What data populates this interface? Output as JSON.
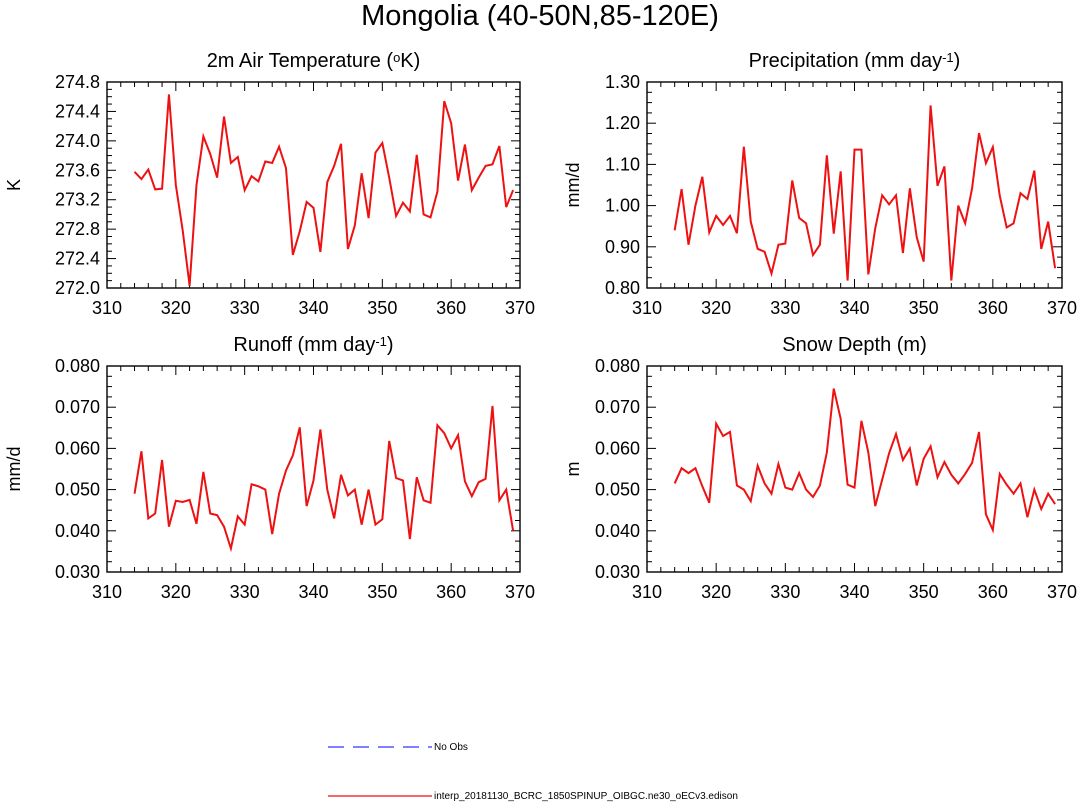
{
  "figure": {
    "title": "Mongolia (40-50N,85-120E)"
  },
  "legend": {
    "entries": [
      {
        "label": "No Obs",
        "color": "#3333ff",
        "style": "dashed"
      },
      {
        "label": "interp_20181130_BCRC_1850SPINUP_OIBGC.ne30_oECv3.edison",
        "color": "#ee1111",
        "style": "solid"
      }
    ]
  },
  "chart_data": [
    {
      "type": "line",
      "title": "2m Air Temperature (oK)",
      "title_parts": [
        "2m Air Temperature (",
        "o",
        "K)"
      ],
      "ylabel": "K",
      "xlim": [
        310,
        370
      ],
      "xticks": [
        310,
        320,
        330,
        340,
        350,
        360,
        370
      ],
      "ylim": [
        272.0,
        274.8
      ],
      "yticks": [
        "272.0",
        "272.4",
        "272.8",
        "273.2",
        "273.6",
        "274.0",
        "274.4",
        "274.8"
      ],
      "grid": false,
      "x": [
        314,
        315,
        316,
        317,
        318,
        319,
        320,
        321,
        322,
        323,
        324,
        325,
        326,
        327,
        328,
        329,
        330,
        331,
        332,
        333,
        334,
        335,
        336,
        337,
        338,
        339,
        340,
        341,
        342,
        343,
        344,
        345,
        346,
        347,
        348,
        349,
        350,
        351,
        352,
        353,
        354,
        355,
        356,
        357,
        358,
        359,
        360,
        361,
        362,
        363,
        364,
        365,
        366,
        367,
        368,
        369
      ],
      "series": [
        {
          "name": "interp_20181130_BCRC_1850SPINUP_OIBGC.ne30_oECv3.edison",
          "color": "#ee1111",
          "values": [
            273.58,
            273.48,
            273.61,
            273.34,
            273.35,
            274.63,
            273.4,
            272.78,
            272.03,
            273.4,
            274.06,
            273.82,
            273.5,
            274.33,
            273.7,
            273.78,
            273.33,
            273.52,
            273.45,
            273.72,
            273.7,
            273.92,
            273.63,
            272.45,
            272.77,
            273.17,
            273.09,
            272.49,
            273.44,
            273.66,
            273.96,
            272.53,
            272.85,
            273.56,
            272.95,
            273.84,
            273.97,
            273.5,
            272.98,
            273.16,
            273.04,
            273.81,
            273.0,
            272.96,
            273.31,
            274.54,
            274.24,
            273.46,
            273.95,
            273.33,
            273.5,
            273.66,
            273.68,
            273.93,
            273.1,
            273.33
          ]
        }
      ]
    },
    {
      "type": "line",
      "title": "Precipitation (mm day-1)",
      "title_parts": [
        "Precipitation (mm day",
        "-1",
        ")"
      ],
      "ylabel": "mm/d",
      "xlim": [
        310,
        370
      ],
      "xticks": [
        310,
        320,
        330,
        340,
        350,
        360,
        370
      ],
      "ylim": [
        0.8,
        1.3
      ],
      "yticks": [
        "0.80",
        "0.90",
        "1.00",
        "1.10",
        "1.20",
        "1.30"
      ],
      "grid": false,
      "x": [
        314,
        315,
        316,
        317,
        318,
        319,
        320,
        321,
        322,
        323,
        324,
        325,
        326,
        327,
        328,
        329,
        330,
        331,
        332,
        333,
        334,
        335,
        336,
        337,
        338,
        339,
        340,
        341,
        342,
        343,
        344,
        345,
        346,
        347,
        348,
        349,
        350,
        351,
        352,
        353,
        354,
        355,
        356,
        357,
        358,
        359,
        360,
        361,
        362,
        363,
        364,
        365,
        366,
        367,
        368,
        369
      ],
      "series": [
        {
          "name": "interp_20181130_BCRC_1850SPINUP_OIBGC.ne30_oECv3.edison",
          "color": "#ee1111",
          "values": [
            0.94,
            1.04,
            0.905,
            1.0,
            1.07,
            0.935,
            0.975,
            0.953,
            0.975,
            0.933,
            1.143,
            0.961,
            0.895,
            0.888,
            0.835,
            0.905,
            0.908,
            1.061,
            0.97,
            0.957,
            0.88,
            0.905,
            1.122,
            0.932,
            1.083,
            0.818,
            1.136,
            1.136,
            0.833,
            0.945,
            1.025,
            1.003,
            1.025,
            0.885,
            1.042,
            0.923,
            0.864,
            1.243,
            1.048,
            1.095,
            0.818,
            1.0,
            0.957,
            1.042,
            1.176,
            1.103,
            1.142,
            1.024,
            0.947,
            0.957,
            1.03,
            1.016,
            1.085,
            0.895,
            0.961,
            0.848
          ]
        }
      ]
    },
    {
      "type": "line",
      "title": "Runoff (mm day-1)",
      "title_parts": [
        "Runoff (mm day",
        "-1",
        ")"
      ],
      "ylabel": "mm/d",
      "xlim": [
        310,
        370
      ],
      "xticks": [
        310,
        320,
        330,
        340,
        350,
        360,
        370
      ],
      "ylim": [
        0.03,
        0.08
      ],
      "yticks": [
        "0.030",
        "0.040",
        "0.050",
        "0.060",
        "0.070",
        "0.080"
      ],
      "grid": false,
      "x": [
        314,
        315,
        316,
        317,
        318,
        319,
        320,
        321,
        322,
        323,
        324,
        325,
        326,
        327,
        328,
        329,
        330,
        331,
        332,
        333,
        334,
        335,
        336,
        337,
        338,
        339,
        340,
        341,
        342,
        343,
        344,
        345,
        346,
        347,
        348,
        349,
        350,
        351,
        352,
        353,
        354,
        355,
        356,
        357,
        358,
        359,
        360,
        361,
        362,
        363,
        364,
        365,
        366,
        367,
        368,
        369
      ],
      "series": [
        {
          "name": "interp_20181130_BCRC_1850SPINUP_OIBGC.ne30_oECv3.edison",
          "color": "#ee1111",
          "values": [
            0.049,
            0.0593,
            0.043,
            0.0442,
            0.0572,
            0.041,
            0.0473,
            0.047,
            0.0475,
            0.0417,
            0.0543,
            0.0442,
            0.0438,
            0.041,
            0.0357,
            0.0435,
            0.0415,
            0.0513,
            0.0508,
            0.05,
            0.0392,
            0.049,
            0.0546,
            0.0583,
            0.0651,
            0.046,
            0.0522,
            0.0646,
            0.05,
            0.043,
            0.0536,
            0.0486,
            0.05,
            0.0415,
            0.05,
            0.0415,
            0.0428,
            0.0618,
            0.0528,
            0.0522,
            0.038,
            0.053,
            0.0474,
            0.0468,
            0.0656,
            0.0637,
            0.06,
            0.0632,
            0.052,
            0.0484,
            0.0518,
            0.0526,
            0.0703,
            0.0474,
            0.05,
            0.04
          ]
        }
      ]
    },
    {
      "type": "line",
      "title": "Snow Depth (m)",
      "title_parts": [
        "Snow Depth (m)"
      ],
      "ylabel": "m",
      "xlim": [
        310,
        370
      ],
      "xticks": [
        310,
        320,
        330,
        340,
        350,
        360,
        370
      ],
      "ylim": [
        0.03,
        0.08
      ],
      "yticks": [
        "0.030",
        "0.040",
        "0.050",
        "0.060",
        "0.070",
        "0.080"
      ],
      "grid": false,
      "x": [
        314,
        315,
        316,
        317,
        318,
        319,
        320,
        321,
        322,
        323,
        324,
        325,
        326,
        327,
        328,
        329,
        330,
        331,
        332,
        333,
        334,
        335,
        336,
        337,
        338,
        339,
        340,
        341,
        342,
        343,
        344,
        345,
        346,
        347,
        348,
        349,
        350,
        351,
        352,
        353,
        354,
        355,
        356,
        357,
        358,
        359,
        360,
        361,
        362,
        363,
        364,
        365,
        366,
        367,
        368,
        369
      ],
      "series": [
        {
          "name": "interp_20181130_BCRC_1850SPINUP_OIBGC.ne30_oECv3.edison",
          "color": "#ee1111",
          "values": [
            0.0515,
            0.0552,
            0.054,
            0.0552,
            0.0508,
            0.0468,
            0.066,
            0.063,
            0.064,
            0.051,
            0.05,
            0.0472,
            0.0558,
            0.0515,
            0.049,
            0.0562,
            0.0505,
            0.05,
            0.054,
            0.05,
            0.0482,
            0.051,
            0.059,
            0.0745,
            0.0672,
            0.0512,
            0.0505,
            0.0667,
            0.059,
            0.046,
            0.0524,
            0.0588,
            0.0635,
            0.0572,
            0.06,
            0.051,
            0.0575,
            0.0605,
            0.053,
            0.0567,
            0.0536,
            0.0515,
            0.0538,
            0.0565,
            0.064,
            0.044,
            0.0402,
            0.0538,
            0.0512,
            0.049,
            0.0515,
            0.0433,
            0.05,
            0.0453,
            0.049,
            0.0465
          ]
        }
      ]
    }
  ]
}
